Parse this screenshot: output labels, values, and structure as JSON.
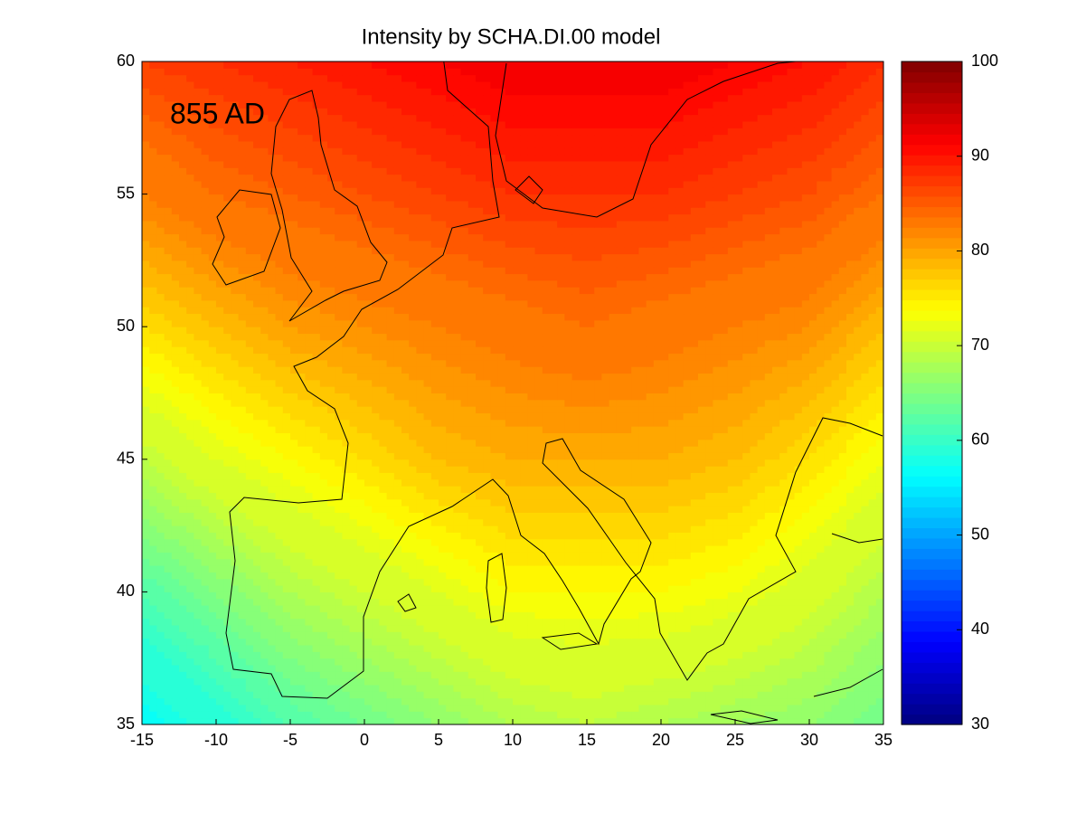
{
  "chart_data": {
    "type": "contour",
    "title": "Intensity by SCHA.DI.00 model",
    "annotation": "855 AD",
    "xlim": [
      -15,
      35
    ],
    "ylim": [
      35,
      60
    ],
    "xticks": [
      -15,
      -10,
      -5,
      0,
      5,
      10,
      15,
      20,
      25,
      30,
      35
    ],
    "yticks": [
      35,
      40,
      45,
      50,
      55,
      60
    ],
    "contour_interval": 1,
    "colormap": "jet",
    "field": {
      "lon": [
        -15,
        -10,
        -5,
        0,
        5,
        10,
        15,
        20,
        25,
        30,
        35
      ],
      "lat": [
        60,
        55,
        50,
        45,
        40,
        35
      ],
      "values": [
        [
          87,
          88,
          89,
          90,
          91,
          92,
          92,
          92,
          91,
          90,
          88
        ],
        [
          82,
          84,
          85,
          86,
          87,
          88,
          88,
          88,
          87,
          86,
          84
        ],
        [
          76,
          78,
          80,
          81,
          82,
          83,
          84,
          83,
          82,
          81,
          78
        ],
        [
          69,
          72,
          74,
          76,
          78,
          79,
          79,
          79,
          78,
          76,
          73
        ],
        [
          62,
          65,
          68,
          70,
          72,
          74,
          74,
          74,
          73,
          71,
          68
        ],
        [
          56,
          59,
          62,
          64,
          66,
          68,
          69,
          68,
          67,
          66,
          64
        ]
      ]
    },
    "colorbar": {
      "clim": [
        30,
        100
      ],
      "ticks": [
        30,
        40,
        50,
        60,
        70,
        80,
        90,
        100
      ]
    }
  }
}
